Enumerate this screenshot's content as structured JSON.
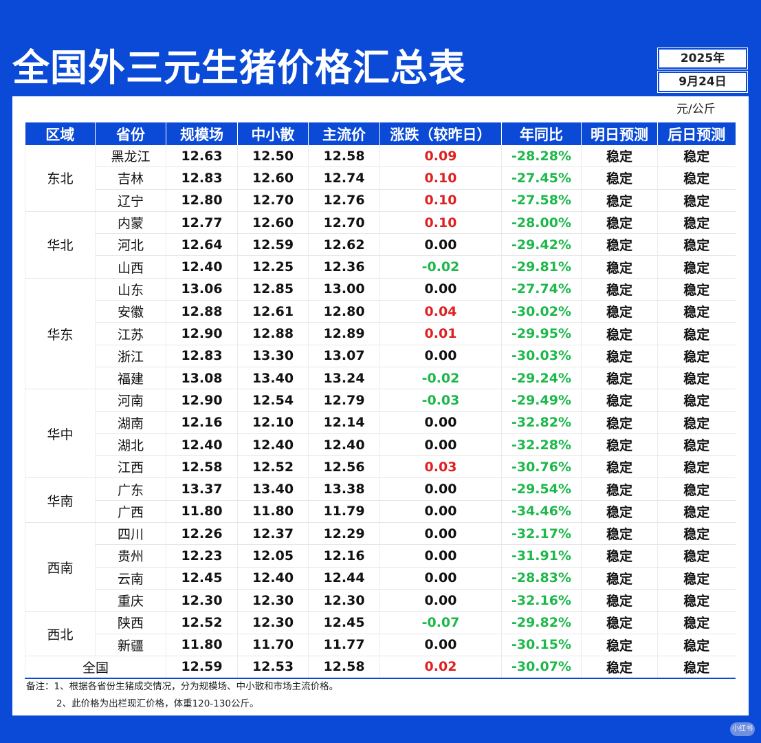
{
  "header": {
    "title": "全国外三元生猪价格汇总表",
    "year": "2025年",
    "date": "9月24日"
  },
  "unit": "元/公斤",
  "columns": [
    "区域",
    "省份",
    "规模场",
    "中小散",
    "主流价",
    "涨跌（较昨日）",
    "年同比",
    "明日预测",
    "后日预测"
  ],
  "regions": [
    "东北",
    "华北",
    "华东",
    "华中",
    "华南",
    "西南",
    "西北"
  ],
  "rows": [
    {
      "province": "黑龙江",
      "large": "12.63",
      "small": "12.50",
      "main": "12.58",
      "change": "0.09",
      "yoy": "-28.28%",
      "tomorrow": "稳定",
      "after": "稳定"
    },
    {
      "province": "吉林",
      "large": "12.83",
      "small": "12.60",
      "main": "12.74",
      "change": "0.10",
      "yoy": "-27.45%",
      "tomorrow": "稳定",
      "after": "稳定"
    },
    {
      "province": "辽宁",
      "large": "12.80",
      "small": "12.70",
      "main": "12.76",
      "change": "0.10",
      "yoy": "-27.58%",
      "tomorrow": "稳定",
      "after": "稳定"
    },
    {
      "province": "内蒙",
      "large": "12.77",
      "small": "12.60",
      "main": "12.70",
      "change": "0.10",
      "yoy": "-28.00%",
      "tomorrow": "稳定",
      "after": "稳定"
    },
    {
      "province": "河北",
      "large": "12.64",
      "small": "12.59",
      "main": "12.62",
      "change": "0.00",
      "yoy": "-29.42%",
      "tomorrow": "稳定",
      "after": "稳定"
    },
    {
      "province": "山西",
      "large": "12.40",
      "small": "12.25",
      "main": "12.36",
      "change": "-0.02",
      "yoy": "-29.81%",
      "tomorrow": "稳定",
      "after": "稳定"
    },
    {
      "province": "山东",
      "large": "13.06",
      "small": "12.85",
      "main": "13.00",
      "change": "0.00",
      "yoy": "-27.74%",
      "tomorrow": "稳定",
      "after": "稳定"
    },
    {
      "province": "安徽",
      "large": "12.88",
      "small": "12.61",
      "main": "12.80",
      "change": "0.04",
      "yoy": "-30.02%",
      "tomorrow": "稳定",
      "after": "稳定"
    },
    {
      "province": "江苏",
      "large": "12.90",
      "small": "12.88",
      "main": "12.89",
      "change": "0.01",
      "yoy": "-29.95%",
      "tomorrow": "稳定",
      "after": "稳定"
    },
    {
      "province": "浙江",
      "large": "12.83",
      "small": "13.30",
      "main": "13.07",
      "change": "0.00",
      "yoy": "-30.03%",
      "tomorrow": "稳定",
      "after": "稳定"
    },
    {
      "province": "福建",
      "large": "13.08",
      "small": "13.40",
      "main": "13.24",
      "change": "-0.02",
      "yoy": "-29.24%",
      "tomorrow": "稳定",
      "after": "稳定"
    },
    {
      "province": "河南",
      "large": "12.90",
      "small": "12.54",
      "main": "12.79",
      "change": "-0.03",
      "yoy": "-29.49%",
      "tomorrow": "稳定",
      "after": "稳定"
    },
    {
      "province": "湖南",
      "large": "12.16",
      "small": "12.10",
      "main": "12.14",
      "change": "0.00",
      "yoy": "-32.82%",
      "tomorrow": "稳定",
      "after": "稳定"
    },
    {
      "province": "湖北",
      "large": "12.40",
      "small": "12.40",
      "main": "12.40",
      "change": "0.00",
      "yoy": "-32.28%",
      "tomorrow": "稳定",
      "after": "稳定"
    },
    {
      "province": "江西",
      "large": "12.58",
      "small": "12.52",
      "main": "12.56",
      "change": "0.03",
      "yoy": "-30.76%",
      "tomorrow": "稳定",
      "after": "稳定"
    },
    {
      "province": "广东",
      "large": "13.37",
      "small": "13.40",
      "main": "13.38",
      "change": "0.00",
      "yoy": "-29.54%",
      "tomorrow": "稳定",
      "after": "稳定"
    },
    {
      "province": "广西",
      "large": "11.80",
      "small": "11.80",
      "main": "11.79",
      "change": "0.00",
      "yoy": "-34.46%",
      "tomorrow": "稳定",
      "after": "稳定"
    },
    {
      "province": "四川",
      "large": "12.26",
      "small": "12.37",
      "main": "12.29",
      "change": "0.00",
      "yoy": "-32.17%",
      "tomorrow": "稳定",
      "after": "稳定"
    },
    {
      "province": "贵州",
      "large": "12.23",
      "small": "12.05",
      "main": "12.16",
      "change": "0.00",
      "yoy": "-31.91%",
      "tomorrow": "稳定",
      "after": "稳定"
    },
    {
      "province": "云南",
      "large": "12.45",
      "small": "12.40",
      "main": "12.44",
      "change": "0.00",
      "yoy": "-28.83%",
      "tomorrow": "稳定",
      "after": "稳定"
    },
    {
      "province": "重庆",
      "large": "12.30",
      "small": "12.30",
      "main": "12.30",
      "change": "0.00",
      "yoy": "-32.16%",
      "tomorrow": "稳定",
      "after": "稳定"
    },
    {
      "province": "陕西",
      "large": "12.52",
      "small": "12.30",
      "main": "12.45",
      "change": "-0.07",
      "yoy": "-29.82%",
      "tomorrow": "稳定",
      "after": "稳定"
    },
    {
      "province": "新疆",
      "large": "11.80",
      "small": "11.70",
      "main": "11.77",
      "change": "0.00",
      "yoy": "-30.15%",
      "tomorrow": "稳定",
      "after": "稳定"
    }
  ],
  "total": {
    "label": "全国",
    "large": "12.59",
    "small": "12.53",
    "main": "12.58",
    "change": "0.02",
    "yoy": "-30.07%",
    "tomorrow": "稳定",
    "after": "稳定"
  },
  "notes": {
    "line1": "备注：1、根据各省份生猪成交情况，分为规模场、中小散和市场主流价格。",
    "line2": "2、此价格为出栏现汇价格，体重120-130公斤。"
  },
  "watermark": "小红书",
  "colors": {
    "brand": "#0a4ad6",
    "up": "#e02020",
    "down": "#1db84a"
  }
}
